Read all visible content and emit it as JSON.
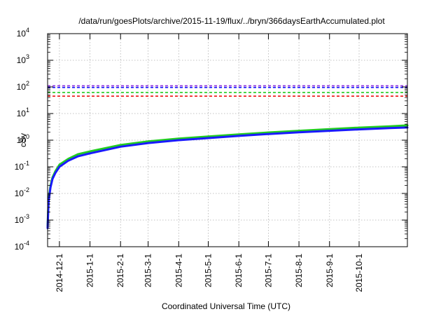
{
  "chart_data": {
    "type": "line",
    "title": "/data/run/goesPlots/archive/2015-11-19/flux/../bryn/366daysEarthAccumulated.plot",
    "xlabel": "Coordinated Universal Time (UTC)",
    "ylabel": "cSv",
    "yscale": "log",
    "ylim_exponents": [
      -4,
      4
    ],
    "y_tick_base": "10",
    "y_tick_exponents": [
      "-4",
      "-3",
      "-2",
      "-1",
      "0",
      "1",
      "2",
      "3",
      "4"
    ],
    "xlim": [
      "2014-11-19",
      "2015-11-19"
    ],
    "x_ticks": [
      "2014-12-1",
      "2015-1-1",
      "2015-2-1",
      "2015-3-1",
      "2015-4-1",
      "2015-5-1",
      "2015-6-1",
      "2015-7-1",
      "2015-8-1",
      "2015-9-1",
      "2015-10-1"
    ],
    "grid": true,
    "legend": "none",
    "thresholds": [
      {
        "value": 110,
        "color": "#8a2be2"
      },
      {
        "value": 95,
        "color": "#1a1aff"
      },
      {
        "value": 62,
        "color": "#22cc22"
      },
      {
        "value": 45,
        "color": "#ee1111"
      }
    ],
    "series": [
      {
        "color": "#22cc22",
        "x": [
          "2014-11-19",
          "2014-11-20",
          "2014-11-22",
          "2014-11-24",
          "2014-11-27",
          "2014-12-1",
          "2014-12-10",
          "2014-12-20",
          "2015-1-1",
          "2015-2-1",
          "2015-3-1",
          "2015-4-1",
          "2015-5-1",
          "2015-6-1",
          "2015-7-1",
          "2015-8-1",
          "2015-9-1",
          "2015-10-1",
          "2015-11-1",
          "2015-11-19"
        ],
        "y": [
          0.0006,
          0.006,
          0.02,
          0.04,
          0.07,
          0.12,
          0.2,
          0.3,
          0.38,
          0.66,
          0.9,
          1.15,
          1.38,
          1.65,
          1.95,
          2.25,
          2.6,
          2.95,
          3.3,
          3.6
        ]
      },
      {
        "color": "#1a1aff",
        "x": [
          "2014-11-19",
          "2014-11-20",
          "2014-11-22",
          "2014-11-24",
          "2014-11-27",
          "2014-12-1",
          "2014-12-10",
          "2014-12-20",
          "2015-1-1",
          "2015-2-1",
          "2015-3-1",
          "2015-4-1",
          "2015-5-1",
          "2015-6-1",
          "2015-7-1",
          "2015-8-1",
          "2015-9-1",
          "2015-10-1",
          "2015-11-1",
          "2015-11-19"
        ],
        "y": [
          0.0005,
          0.005,
          0.017,
          0.035,
          0.06,
          0.1,
          0.17,
          0.25,
          0.32,
          0.57,
          0.78,
          1.0,
          1.2,
          1.45,
          1.7,
          1.98,
          2.25,
          2.55,
          2.85,
          3.0
        ]
      }
    ]
  }
}
